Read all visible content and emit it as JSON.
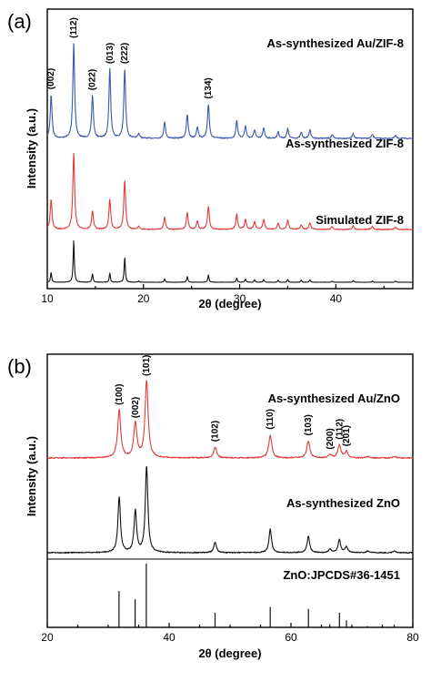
{
  "chart_data": [
    {
      "panel": "(a)",
      "type": "line",
      "xlabel": "2θ (degree)",
      "ylabel": "Intensity (a.u.)",
      "xlim": [
        10,
        48
      ],
      "xticks": [
        10,
        20,
        30,
        40
      ],
      "yticks": "none",
      "grid": false,
      "series": [
        {
          "name": "As-synthesized Au/ZIF-8",
          "color": "#3a56b0",
          "peaks": [
            [
              10.4,
              0.46
            ],
            [
              12.75,
              1.0
            ],
            [
              14.7,
              0.45
            ],
            [
              16.5,
              0.73
            ],
            [
              18.05,
              0.73
            ],
            [
              19.5,
              0.05
            ],
            [
              22.2,
              0.17
            ],
            [
              24.55,
              0.25
            ],
            [
              25.6,
              0.12
            ],
            [
              26.75,
              0.36
            ],
            [
              29.7,
              0.19
            ],
            [
              30.6,
              0.13
            ],
            [
              31.55,
              0.09
            ],
            [
              32.5,
              0.11
            ],
            [
              34.0,
              0.07
            ],
            [
              35.0,
              0.1
            ],
            [
              36.4,
              0.06
            ],
            [
              37.3,
              0.09
            ],
            [
              39.6,
              0.04
            ],
            [
              41.8,
              0.05
            ],
            [
              43.8,
              0.04
            ],
            [
              46.2,
              0.03
            ]
          ]
        },
        {
          "name": "As-synthesized ZIF-8",
          "color": "#e03a3a",
          "peaks": [
            [
              10.4,
              0.39
            ],
            [
              12.75,
              1.0
            ],
            [
              14.7,
              0.24
            ],
            [
              16.5,
              0.39
            ],
            [
              18.05,
              0.64
            ],
            [
              19.5,
              0.04
            ],
            [
              22.2,
              0.16
            ],
            [
              24.55,
              0.22
            ],
            [
              25.6,
              0.11
            ],
            [
              26.75,
              0.3
            ],
            [
              29.7,
              0.2
            ],
            [
              30.6,
              0.13
            ],
            [
              31.55,
              0.1
            ],
            [
              32.5,
              0.13
            ],
            [
              34.0,
              0.08
            ],
            [
              35.0,
              0.12
            ],
            [
              36.4,
              0.06
            ],
            [
              37.3,
              0.09
            ],
            [
              39.6,
              0.04
            ],
            [
              41.8,
              0.05
            ],
            [
              43.8,
              0.04
            ],
            [
              46.2,
              0.03
            ]
          ]
        },
        {
          "name": "Simulated ZIF-8",
          "color": "#111111",
          "peaks": [
            [
              10.4,
              0.24
            ],
            [
              12.75,
              1.0
            ],
            [
              14.7,
              0.2
            ],
            [
              16.5,
              0.22
            ],
            [
              18.05,
              0.6
            ],
            [
              19.5,
              0.03
            ],
            [
              22.2,
              0.08
            ],
            [
              24.55,
              0.14
            ],
            [
              26.75,
              0.18
            ],
            [
              29.7,
              0.1
            ],
            [
              30.6,
              0.08
            ],
            [
              31.55,
              0.06
            ],
            [
              32.5,
              0.07
            ],
            [
              34.0,
              0.05
            ],
            [
              35.0,
              0.07
            ],
            [
              36.4,
              0.05
            ],
            [
              37.3,
              0.06
            ],
            [
              39.6,
              0.03
            ],
            [
              41.8,
              0.04
            ],
            [
              43.8,
              0.03
            ],
            [
              46.2,
              0.03
            ]
          ]
        }
      ],
      "annotations": [
        {
          "text": "(002)",
          "x": 10.4
        },
        {
          "text": "(112)",
          "x": 12.75
        },
        {
          "text": "(022)",
          "x": 14.7
        },
        {
          "text": "(013)",
          "x": 16.5
        },
        {
          "text": "(222)",
          "x": 18.05
        },
        {
          "text": "(134)",
          "x": 26.75
        }
      ]
    },
    {
      "panel": "(b)",
      "type": "line",
      "xlabel": "2θ (degree)",
      "ylabel": "Intensity (a.u.)",
      "xlim": [
        20,
        80
      ],
      "xticks": [
        20,
        40,
        60,
        80
      ],
      "yticks": "none",
      "grid": false,
      "series": [
        {
          "name": "As-synthesized Au/ZnO",
          "color": "#e03a3a",
          "peaks": [
            [
              31.8,
              0.62
            ],
            [
              34.45,
              0.45
            ],
            [
              36.3,
              1.0
            ],
            [
              47.55,
              0.14
            ],
            [
              56.6,
              0.3
            ],
            [
              62.85,
              0.22
            ],
            [
              66.4,
              0.04
            ],
            [
              67.95,
              0.17
            ],
            [
              69.1,
              0.08
            ],
            [
              72.6,
              0.02
            ],
            [
              77.0,
              0.02
            ]
          ]
        },
        {
          "name": "As-synthesized ZnO",
          "color": "#111111",
          "peaks": [
            [
              31.8,
              0.64
            ],
            [
              34.45,
              0.48
            ],
            [
              36.3,
              1.0
            ],
            [
              47.55,
              0.12
            ],
            [
              56.6,
              0.27
            ],
            [
              62.85,
              0.19
            ],
            [
              66.4,
              0.04
            ],
            [
              67.95,
              0.15
            ],
            [
              69.1,
              0.07
            ],
            [
              72.6,
              0.02
            ],
            [
              77.0,
              0.02
            ]
          ]
        },
        {
          "name": "ZnO:JPCDS#36-1451",
          "color": "#111111",
          "style": "stick",
          "peaks": [
            [
              31.77,
              0.57
            ],
            [
              34.42,
              0.44
            ],
            [
              36.25,
              1.0
            ],
            [
              47.54,
              0.23
            ],
            [
              56.6,
              0.32
            ],
            [
              62.86,
              0.29
            ],
            [
              66.38,
              0.05
            ],
            [
              67.96,
              0.23
            ],
            [
              69.1,
              0.11
            ],
            [
              72.56,
              0.02
            ],
            [
              76.95,
              0.04
            ]
          ]
        }
      ],
      "annotations": [
        {
          "text": "(100)",
          "x": 31.8
        },
        {
          "text": "(002)",
          "x": 34.45
        },
        {
          "text": "(101)",
          "x": 36.3
        },
        {
          "text": "(102)",
          "x": 47.55
        },
        {
          "text": "(110)",
          "x": 56.6
        },
        {
          "text": "(103)",
          "x": 62.85
        },
        {
          "text": "(200)",
          "x": 66.4
        },
        {
          "text": "(112)",
          "x": 67.95
        },
        {
          "text": "(201)",
          "x": 69.1
        }
      ]
    }
  ]
}
